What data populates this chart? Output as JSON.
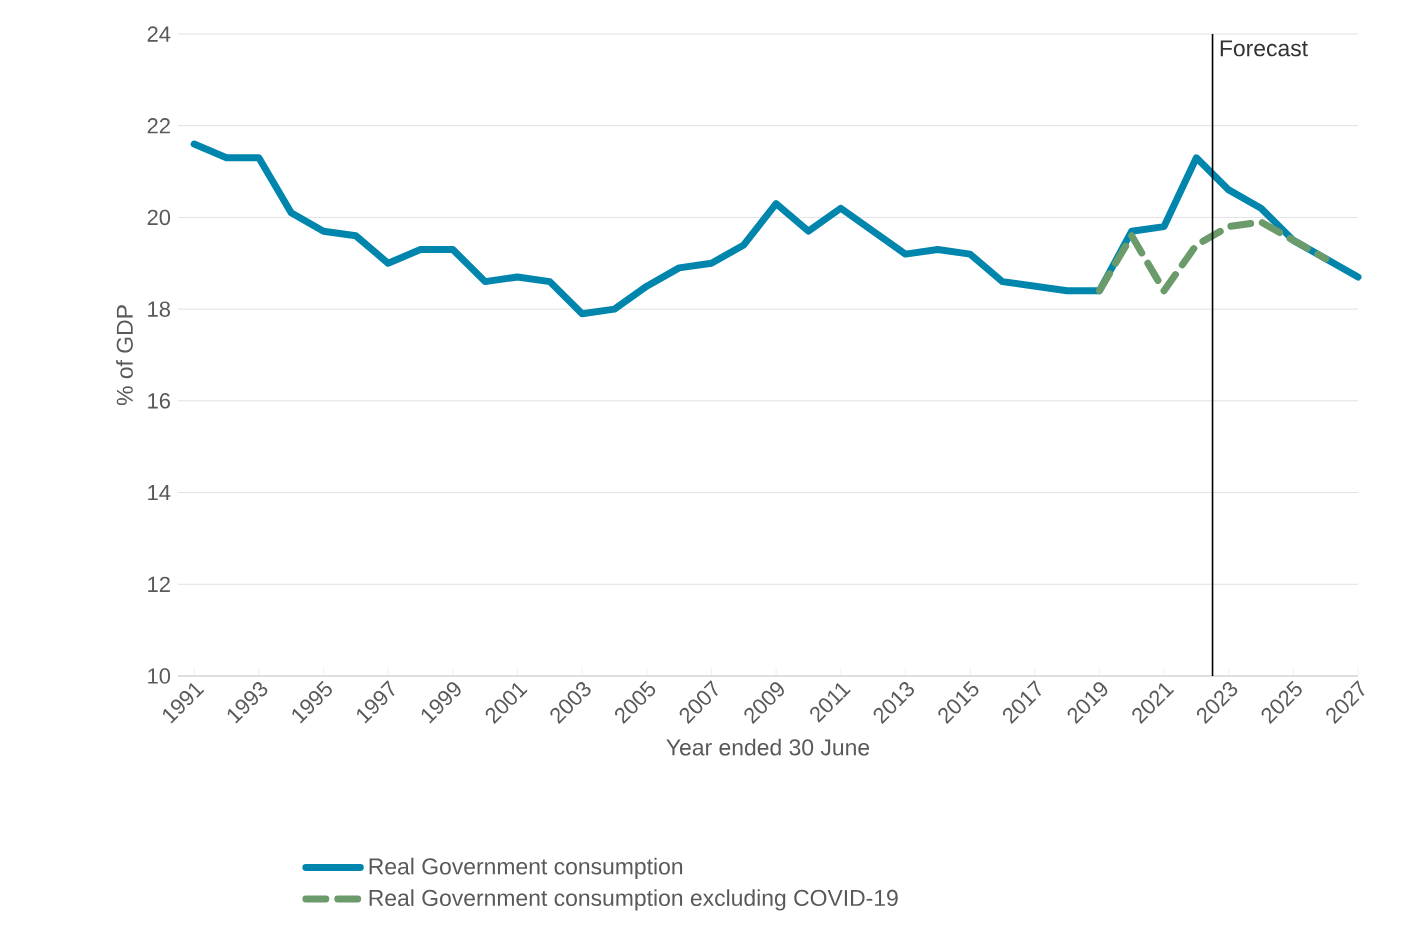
{
  "chart_data": {
    "type": "line",
    "xlabel": "Year ended 30 June",
    "ylabel": "% of GDP",
    "x": [
      1991,
      1992,
      1993,
      1994,
      1995,
      1996,
      1997,
      1998,
      1999,
      2000,
      2001,
      2002,
      2003,
      2004,
      2005,
      2006,
      2007,
      2008,
      2009,
      2010,
      2011,
      2012,
      2013,
      2014,
      2015,
      2016,
      2017,
      2018,
      2019,
      2020,
      2021,
      2022,
      2023,
      2024,
      2025,
      2026,
      2027
    ],
    "series": [
      {
        "name": "Real Government consumption",
        "color": "#0086ad",
        "line_style": "solid",
        "values": [
          21.6,
          21.3,
          21.3,
          20.1,
          19.7,
          19.6,
          19.0,
          19.3,
          19.3,
          18.6,
          18.7,
          18.6,
          17.9,
          18.0,
          18.5,
          18.9,
          19.0,
          19.4,
          20.3,
          19.7,
          20.2,
          19.7,
          19.2,
          19.3,
          19.2,
          18.6,
          18.5,
          18.4,
          18.4,
          19.7,
          19.8,
          21.3,
          20.6,
          20.2,
          19.5,
          19.1,
          18.7
        ]
      },
      {
        "name": "Real Government consumption excluding COVID-19",
        "color": "#6b9a6b",
        "line_style": "dashed",
        "values": [
          null,
          null,
          null,
          null,
          null,
          null,
          null,
          null,
          null,
          null,
          null,
          null,
          null,
          null,
          null,
          null,
          null,
          null,
          null,
          null,
          null,
          null,
          null,
          null,
          null,
          null,
          null,
          null,
          18.4,
          19.6,
          18.4,
          19.4,
          19.8,
          19.9,
          19.5,
          19.1,
          null
        ]
      }
    ],
    "xlim": [
      1990.5,
      2027
    ],
    "xticks": [
      1991,
      1993,
      1995,
      1997,
      1999,
      2001,
      2003,
      2005,
      2007,
      2009,
      2011,
      2013,
      2015,
      2017,
      2019,
      2021,
      2023,
      2025,
      2027
    ],
    "ylim": [
      10,
      24
    ],
    "yticks": [
      10,
      12,
      14,
      16,
      18,
      20,
      22,
      24
    ],
    "grid": "y",
    "legend": "bottom",
    "ref_lines": [
      {
        "axis": "x",
        "value": 2022.5,
        "label": "Forecast",
        "color": "#000000"
      }
    ]
  }
}
